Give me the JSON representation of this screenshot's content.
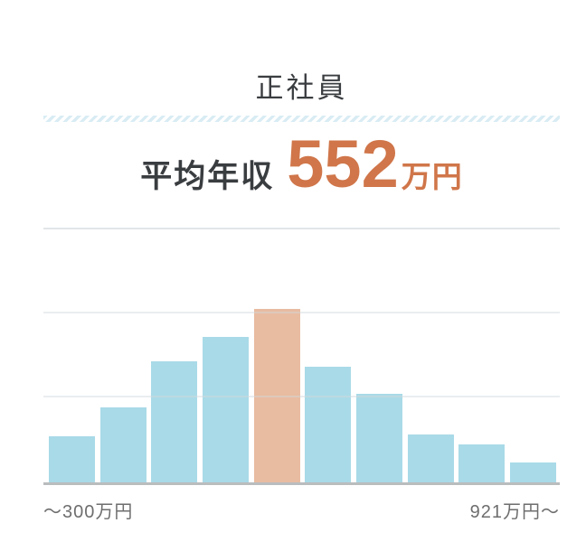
{
  "header": {
    "title": "正社員",
    "average_label": "平均年収",
    "average_value": "552",
    "average_unit": "万円"
  },
  "chart_data": {
    "type": "bar",
    "description": "Annual income distribution histogram for full-time employees; 10 bins, middle bin (containing the 552万円 average) highlighted",
    "values": [
      51,
      83,
      134,
      161,
      192,
      128,
      98,
      53,
      42,
      22
    ],
    "value_unit": "relative bar height in px (no y-axis tick labels shown)",
    "highlight_index": 4,
    "xlabel_left": "〜300万円",
    "xlabel_right": "921万円〜",
    "ylabel": "",
    "grid": "3 faint horizontal gridlines, evenly spaced; unlabeled y-axis",
    "legend": "none"
  },
  "colors": {
    "accent_orange": "#d0764a",
    "text_dark": "#3a3d40",
    "text_gray": "#6e6e6e",
    "bar_blue": "#a9dae8",
    "bar_highlight": "#e8bca1",
    "hatch_blue": "#d9ecf4",
    "axis_gray": "#babdbe"
  }
}
